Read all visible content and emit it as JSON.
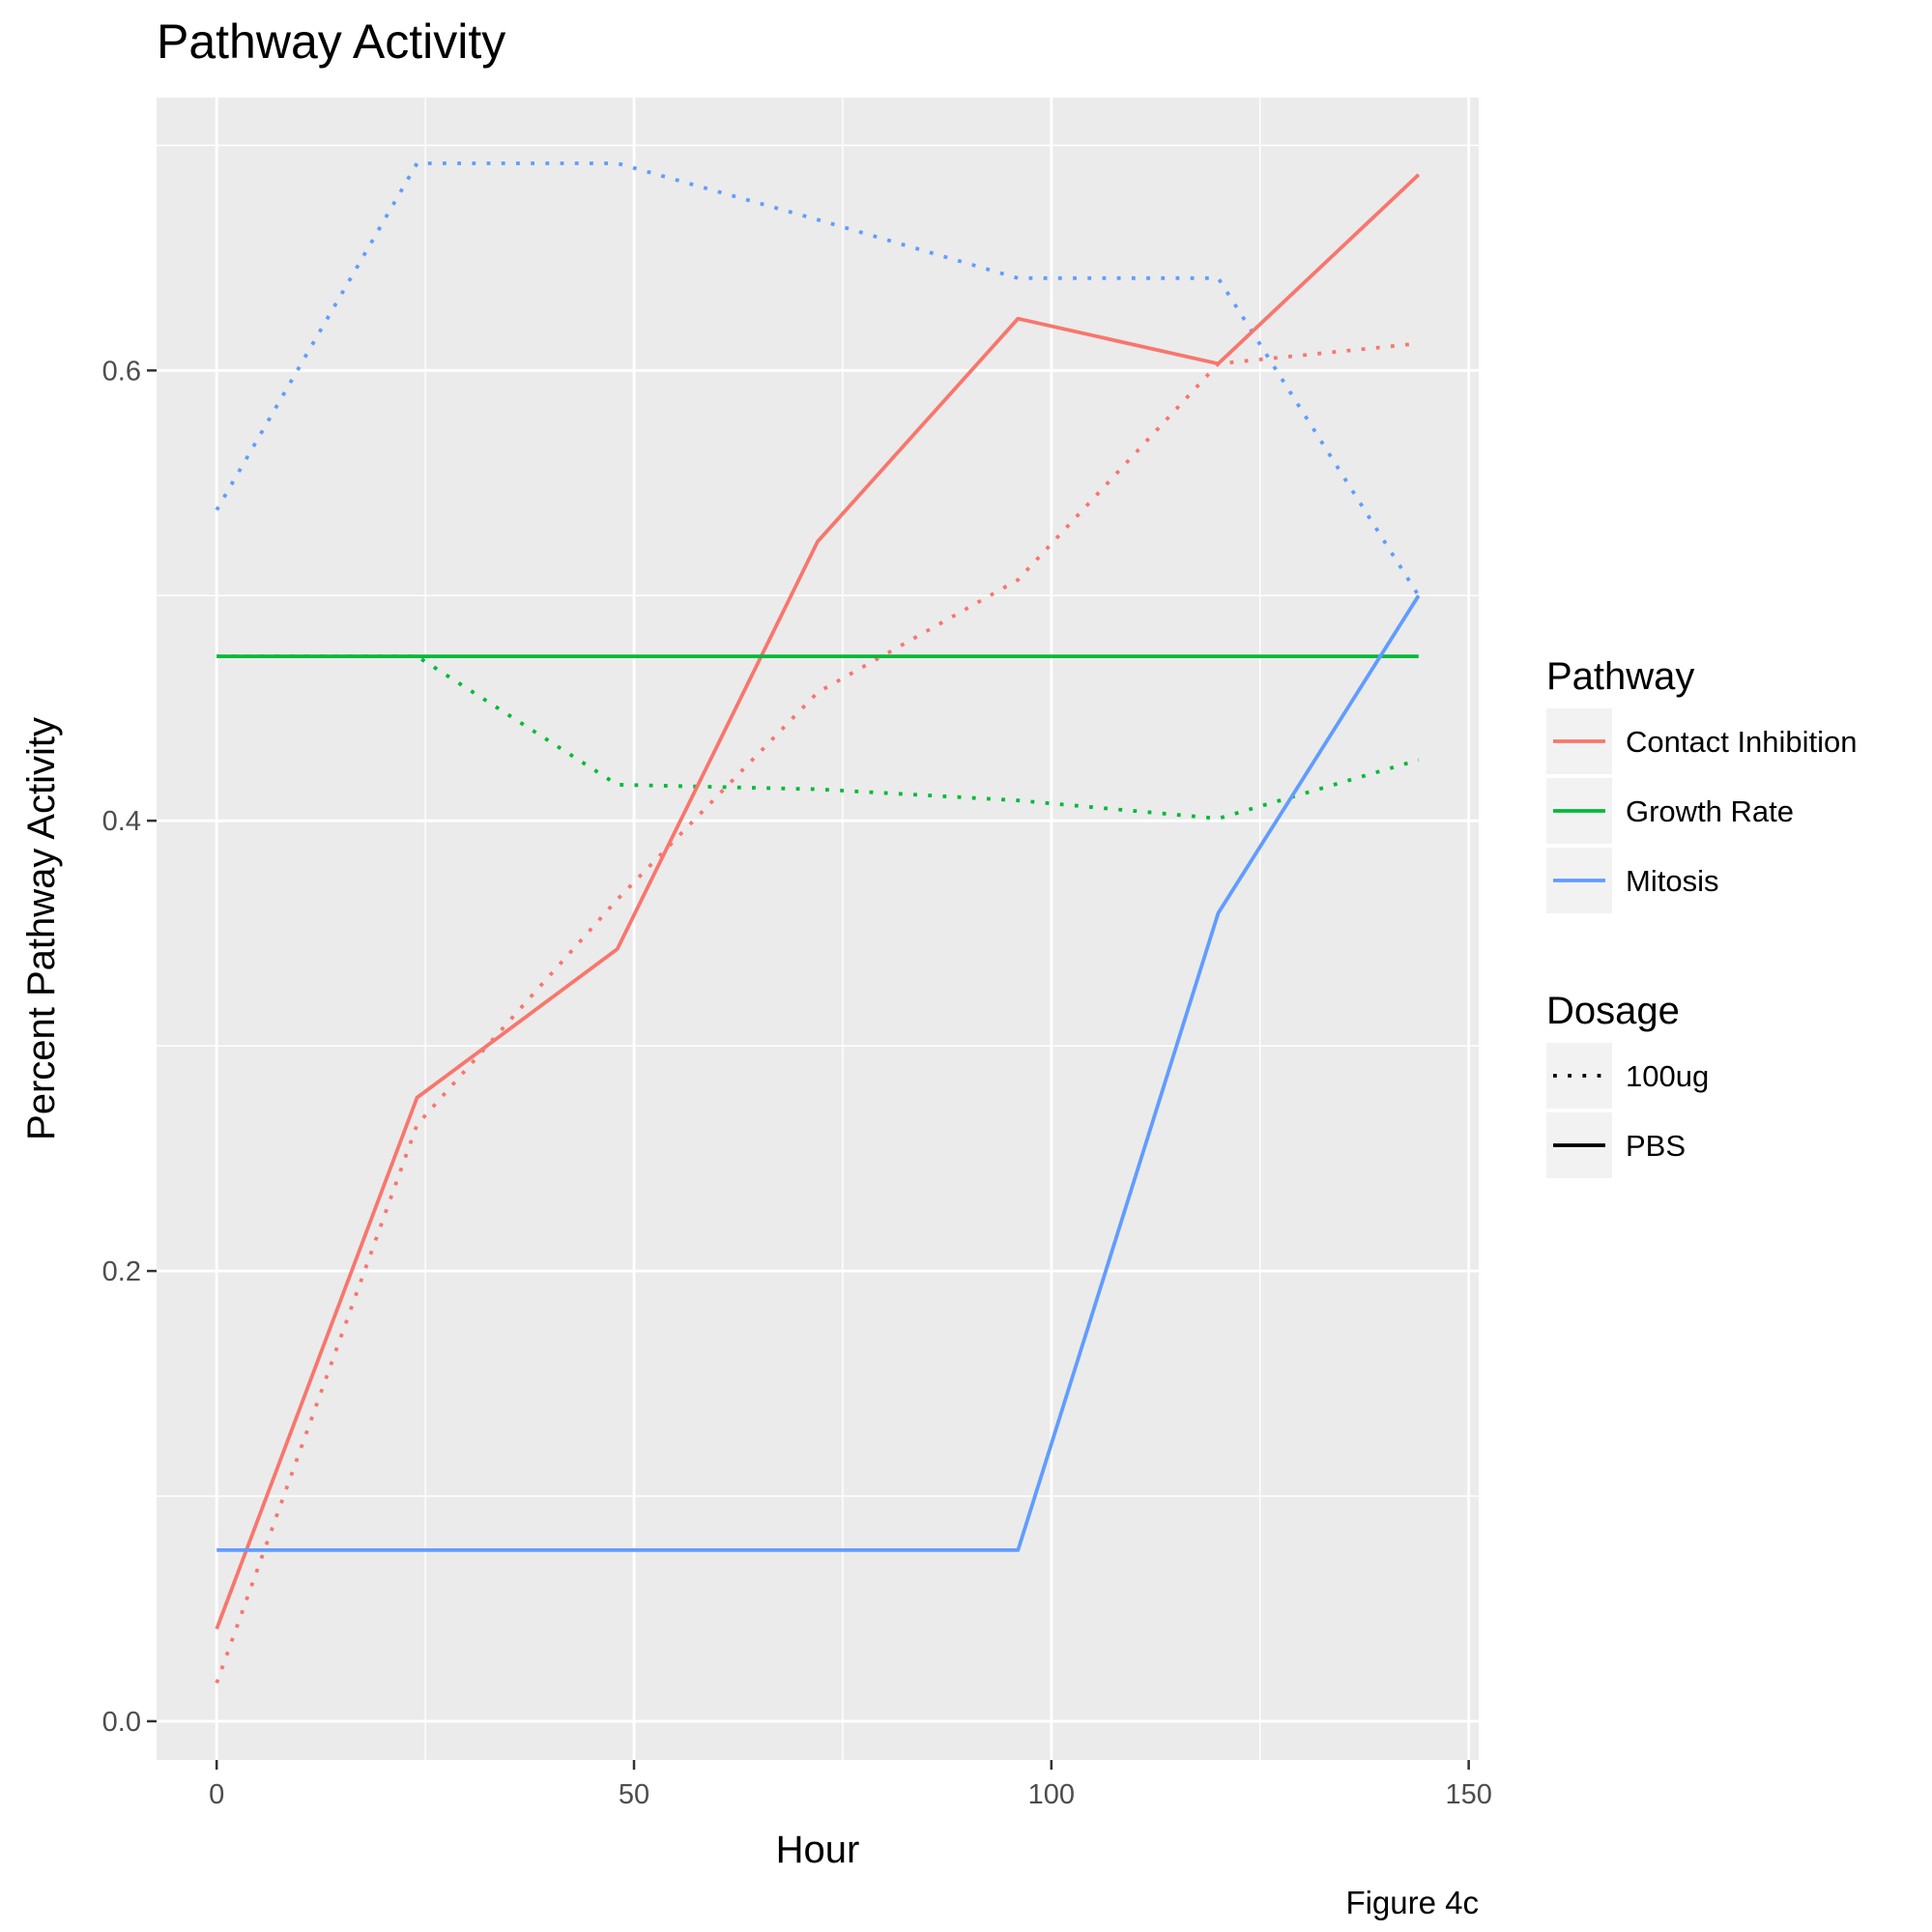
{
  "chart_data": {
    "type": "line",
    "title": "Pathway Activity",
    "xlabel": "Hour",
    "ylabel": "Percent Pathway Activity",
    "caption": "Figure 4c",
    "xlim": [
      -7.2,
      151.2
    ],
    "ylim": [
      -0.0172,
      0.7212
    ],
    "x_ticks": [
      0,
      50,
      100,
      150
    ],
    "x_tick_labels": [
      "0",
      "50",
      "100",
      "150"
    ],
    "y_ticks": [
      0.0,
      0.2,
      0.4,
      0.6
    ],
    "y_tick_labels": [
      "0.0",
      "0.2",
      "0.4",
      "0.6"
    ],
    "grid": true,
    "legend_placement": "right",
    "legends": [
      {
        "title": "Pathway",
        "items": [
          {
            "label": "Contact Inhibition",
            "color": "#F8766D"
          },
          {
            "label": "Growth Rate",
            "color": "#00BA38"
          },
          {
            "label": "Mitosis",
            "color": "#619CFF"
          }
        ]
      },
      {
        "title": "Dosage",
        "items": [
          {
            "label": "100ug",
            "linetype": "dotted"
          },
          {
            "label": "PBS",
            "linetype": "solid"
          }
        ]
      }
    ],
    "series": [
      {
        "pathway": "Contact Inhibition",
        "dosage": "PBS",
        "color": "#F8766D",
        "linetype": "solid",
        "x": [
          0,
          24,
          48,
          72,
          96,
          120,
          144
        ],
        "y": [
          0.041,
          0.277,
          0.343,
          0.524,
          0.623,
          0.603,
          0.687
        ]
      },
      {
        "pathway": "Contact Inhibition",
        "dosage": "100ug",
        "color": "#F8766D",
        "linetype": "dotted",
        "x": [
          0,
          24,
          48,
          72,
          96,
          120,
          144
        ],
        "y": [
          0.017,
          0.265,
          0.365,
          0.457,
          0.507,
          0.603,
          0.612
        ]
      },
      {
        "pathway": "Growth Rate",
        "dosage": "PBS",
        "color": "#00BA38",
        "linetype": "solid",
        "x": [
          0,
          24,
          48,
          72,
          96,
          120,
          144
        ],
        "y": [
          0.473,
          0.473,
          0.473,
          0.473,
          0.473,
          0.473,
          0.473
        ]
      },
      {
        "pathway": "Growth Rate",
        "dosage": "100ug",
        "color": "#00BA38",
        "linetype": "dotted",
        "x": [
          0,
          24,
          48,
          72,
          96,
          120,
          144
        ],
        "y": [
          0.473,
          0.473,
          0.416,
          0.414,
          0.409,
          0.401,
          0.427
        ]
      },
      {
        "pathway": "Mitosis",
        "dosage": "PBS",
        "color": "#619CFF",
        "linetype": "solid",
        "x": [
          0,
          24,
          48,
          72,
          96,
          120,
          144
        ],
        "y": [
          0.076,
          0.076,
          0.076,
          0.076,
          0.076,
          0.359,
          0.5
        ]
      },
      {
        "pathway": "Mitosis",
        "dosage": "100ug",
        "color": "#619CFF",
        "linetype": "dotted",
        "x": [
          0,
          24,
          48,
          72,
          96,
          120,
          144
        ],
        "y": [
          0.538,
          0.692,
          0.692,
          0.667,
          0.641,
          0.641,
          0.5
        ]
      }
    ]
  }
}
